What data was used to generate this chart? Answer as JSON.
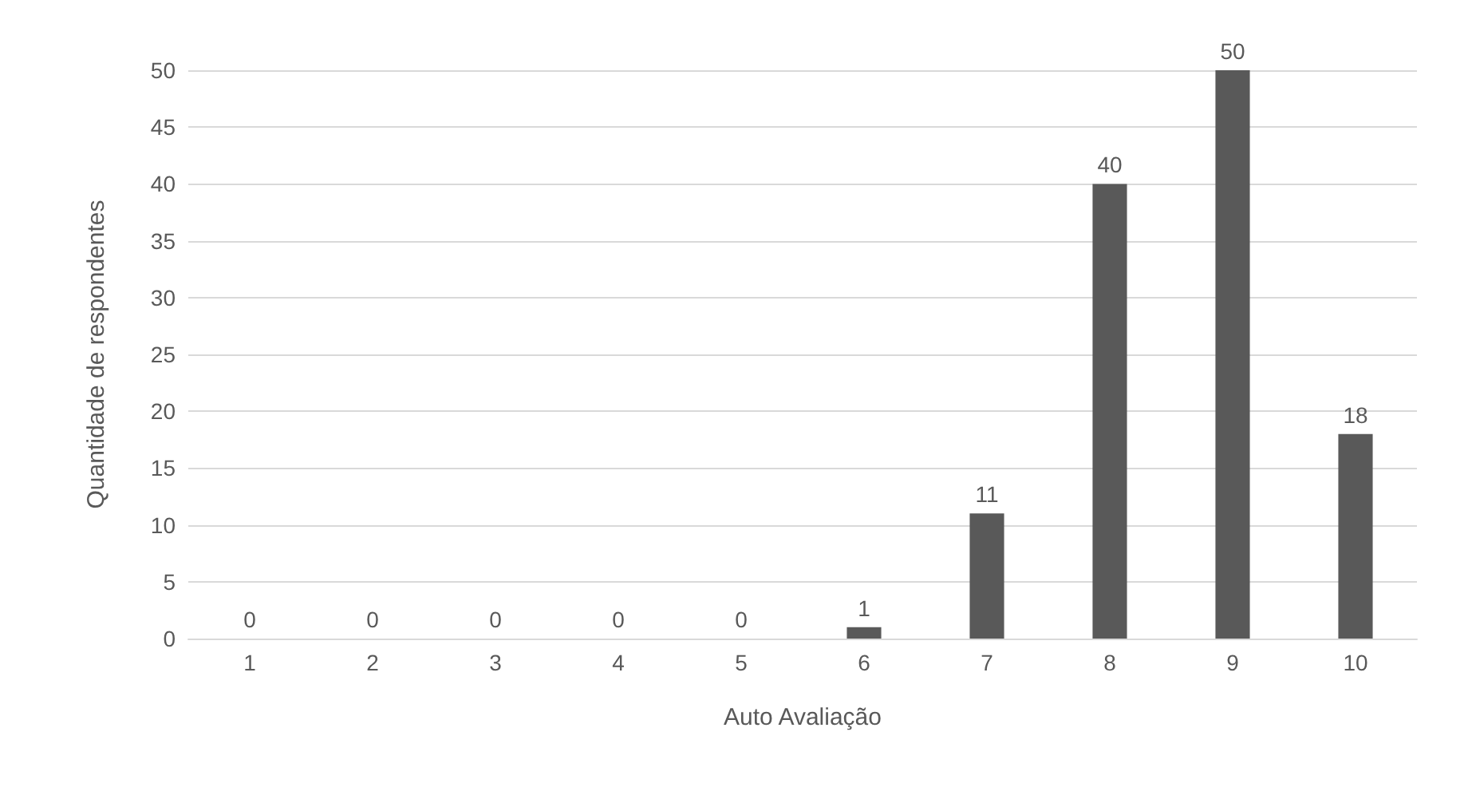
{
  "chart_data": {
    "type": "bar",
    "xlabel": "Auto Avaliação",
    "ylabel": "Quantidade de respondentes",
    "categories": [
      "1",
      "2",
      "3",
      "4",
      "5",
      "6",
      "7",
      "8",
      "9",
      "10"
    ],
    "values": [
      0,
      0,
      0,
      0,
      0,
      1,
      11,
      40,
      50,
      18
    ],
    "color": "#595959",
    "ylim": [
      0,
      50
    ],
    "yticks": [
      0,
      5,
      10,
      15,
      20,
      25,
      30,
      35,
      40,
      45,
      50
    ],
    "grid": "y",
    "data_labels": true
  }
}
